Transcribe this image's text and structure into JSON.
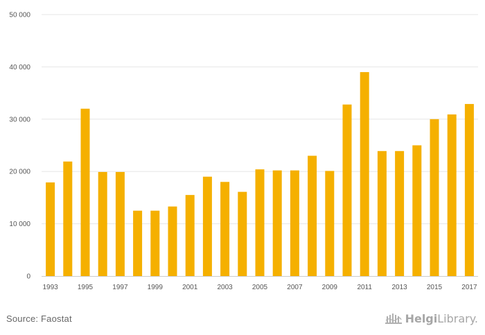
{
  "chart_data": {
    "type": "bar",
    "categories": [
      "1993",
      "1994",
      "1995",
      "1996",
      "1997",
      "1998",
      "1999",
      "2000",
      "2001",
      "2002",
      "2003",
      "2004",
      "2005",
      "2006",
      "2007",
      "2008",
      "2009",
      "2010",
      "2011",
      "2012",
      "2013",
      "2014",
      "2015",
      "2016",
      "2017"
    ],
    "values": [
      17900,
      21900,
      32000,
      19900,
      19900,
      12500,
      12500,
      13300,
      15500,
      19000,
      18000,
      16100,
      20400,
      20200,
      20200,
      23000,
      20100,
      32800,
      39000,
      23900,
      23900,
      25000,
      30000,
      30900,
      32900
    ],
    "x_tick_labels": [
      "1993",
      "",
      "1995",
      "",
      "1997",
      "",
      "1999",
      "",
      "2001",
      "",
      "2003",
      "",
      "2005",
      "",
      "2007",
      "",
      "2009",
      "",
      "2011",
      "",
      "2013",
      "",
      "2015",
      "",
      "2017"
    ],
    "y_ticks": [
      0,
      10000,
      20000,
      30000,
      40000,
      50000
    ],
    "y_tick_labels": [
      "0",
      "10 000",
      "20 000",
      "30 000",
      "40 000",
      "50 000"
    ],
    "ylim": [
      0,
      50000
    ],
    "grid": true,
    "bar_color": "#f5b000",
    "title": "",
    "xlabel": "",
    "ylabel": ""
  },
  "footer": {
    "source": "Source: Faostat",
    "logo_bold": "Helgi",
    "logo_light": "Library."
  }
}
